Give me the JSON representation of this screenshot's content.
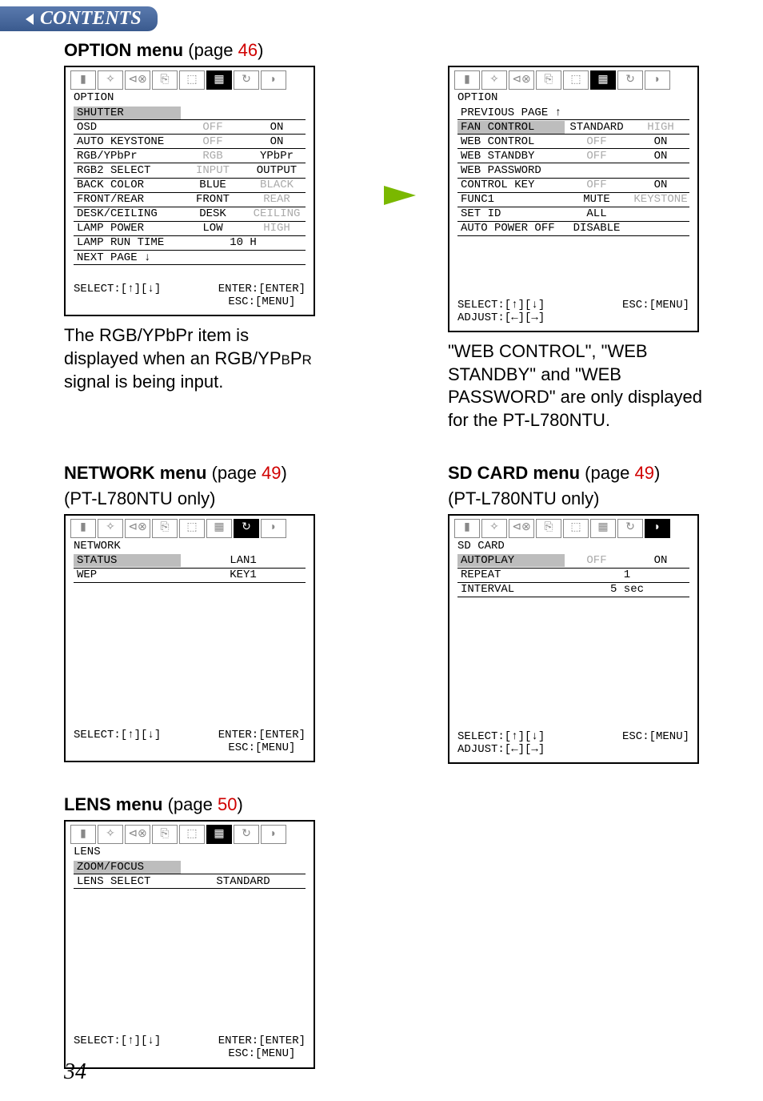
{
  "header": {
    "contents_label": "CONTENTS"
  },
  "accent_colors": {
    "red": "#d00000",
    "arrow_green": "#7ab800",
    "highlight_gray": "#bdbdbd",
    "dim_gray": "#aaaaaa"
  },
  "sections": {
    "option": {
      "title_bold": "OPTION menu",
      "page_word": "(page ",
      "page_num": "46",
      "close": ")",
      "menu1": {
        "name": "OPTION",
        "rows": [
          {
            "label": "SHUTTER",
            "v1": "",
            "v2": "",
            "hl": true
          },
          {
            "label": "OSD",
            "v1": "OFF",
            "v2": "ON",
            "v1gray": true
          },
          {
            "label": "AUTO KEYSTONE",
            "v1": "OFF",
            "v2": "ON",
            "v1gray": true
          },
          {
            "label": "RGB/YPbPr",
            "v1": "RGB",
            "v2": "YPbPr",
            "v1gray": true
          },
          {
            "label": "RGB2 SELECT",
            "v1": "INPUT",
            "v2": "OUTPUT",
            "v1gray": true
          },
          {
            "label": "BACK COLOR",
            "v1": "BLUE",
            "v2": "BLACK",
            "v2gray": true
          },
          {
            "label": "FRONT/REAR",
            "v1": "FRONT",
            "v2": "REAR",
            "v2gray": true
          },
          {
            "label": "DESK/CEILING",
            "v1": "DESK",
            "v2": "CEILING",
            "v2gray": true
          },
          {
            "label": "LAMP POWER",
            "v1": "LOW",
            "v2": "HIGH",
            "v2gray": true
          },
          {
            "label": "LAMP RUN TIME",
            "vc": "10 H"
          },
          {
            "label": "NEXT PAGE ↓",
            "v1": "",
            "v2": ""
          }
        ],
        "footer": {
          "left": "SELECT:[↑][↓]",
          "r1": "ENTER:[ENTER]",
          "r2": "ESC:[MENU]"
        }
      },
      "menu2": {
        "name": "OPTION",
        "rows": [
          {
            "label": "PREVIOUS PAGE ↑",
            "v1": "",
            "v2": ""
          },
          {
            "label": "FAN CONTROL",
            "v1": "STANDARD",
            "v2": "HIGH",
            "hl": true,
            "v2gray": true
          },
          {
            "label": "WEB CONTROL",
            "v1": "OFF",
            "v2": "ON",
            "v1gray": true
          },
          {
            "label": "WEB STANDBY",
            "v1": "OFF",
            "v2": "ON",
            "v1gray": true
          },
          {
            "label": "WEB PASSWORD",
            "v1": "",
            "v2": ""
          },
          {
            "label": "CONTROL KEY",
            "v1": "OFF",
            "v2": "ON",
            "v1gray": true
          },
          {
            "label": "FUNC1",
            "v1": "MUTE",
            "v2": "KEYSTONE",
            "v2gray": true
          },
          {
            "label": "SET ID",
            "v1": "ALL",
            "v2": ""
          },
          {
            "label": "AUTO POWER OFF",
            "v1": "DISABLE",
            "v2": ""
          }
        ],
        "footer": {
          "left": "SELECT:[↑][↓]",
          "l2": "ADJUST:[←][→]",
          "r2": "ESC:[MENU]"
        }
      },
      "note1": "The RGB/YPbPr item is displayed when an RGB/YPBPR signal is being input.",
      "note2": "\"WEB CONTROL\", \"WEB STANDBY\" and \"WEB PASSWORD\" are only displayed for the PT-L780NTU."
    },
    "network": {
      "title_bold": "NETWORK menu",
      "page_word": "(page ",
      "page_num": "49",
      "close": ")",
      "sub": "(PT-L780NTU only)",
      "menu": {
        "name": "NETWORK",
        "rows": [
          {
            "label": "STATUS",
            "vc": "LAN1",
            "hl": true
          },
          {
            "label": "WEP",
            "vc": "KEY1"
          }
        ],
        "footer": {
          "left": "SELECT:[↑][↓]",
          "r1": "ENTER:[ENTER]",
          "r2": "ESC:[MENU]"
        }
      }
    },
    "sdcard": {
      "title_bold": "SD CARD menu",
      "page_word": "(page ",
      "page_num": "49",
      "close": ")",
      "sub": "(PT-L780NTU only)",
      "menu": {
        "name": "SD CARD",
        "rows": [
          {
            "label": "AUTOPLAY",
            "v1": "OFF",
            "v2": "ON",
            "hl": true,
            "v1gray": true
          },
          {
            "label": "REPEAT",
            "vc": "1"
          },
          {
            "label": "INTERVAL",
            "vc": "5 sec"
          }
        ],
        "footer": {
          "left": "SELECT:[↑][↓]",
          "l2": "ADJUST:[←][→]",
          "r2": "ESC:[MENU]"
        }
      }
    },
    "lens": {
      "title_bold": "LENS menu",
      "page_word": "(page ",
      "page_num": "50",
      "close": ")",
      "menu": {
        "name": "LENS",
        "rows": [
          {
            "label": "ZOOM/FOCUS",
            "vc": "",
            "hl": true
          },
          {
            "label": "LENS SELECT",
            "vc": "STANDARD"
          }
        ],
        "footer": {
          "left": "SELECT:[↑][↓]",
          "r1": "ENTER:[ENTER]",
          "r2": "ESC:[MENU]"
        }
      }
    }
  },
  "page_number": "34",
  "icon_glyphs": [
    "▮",
    "✧",
    "⊲⊗",
    "⎘",
    "⬚",
    "▦",
    "↻",
    "◗"
  ]
}
